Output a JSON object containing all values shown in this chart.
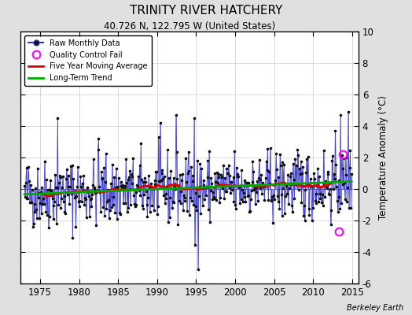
{
  "title": "TRINITY RIVER HATCHERY",
  "subtitle": "40.726 N, 122.795 W (United States)",
  "ylabel": "Temperature Anomaly (°C)",
  "watermark": "Berkeley Earth",
  "start_year": 1973,
  "end_year": 2014,
  "ylim": [
    -6,
    10
  ],
  "yticks": [
    -6,
    -4,
    -2,
    0,
    2,
    4,
    6,
    8,
    10
  ],
  "xlim": [
    1972.5,
    2015.8
  ],
  "xticks": [
    1975,
    1980,
    1985,
    1990,
    1995,
    2000,
    2005,
    2010,
    2015
  ],
  "bg_color": "#e0e0e0",
  "plot_bg_color": "#ffffff",
  "raw_line_color": "#3333cc",
  "raw_marker_color": "#111111",
  "moving_avg_color": "#dd0000",
  "trend_color": "#00aa00",
  "qc_fail_color": "#ff00ff",
  "seed": 42,
  "qc_fail_t": [
    2013.25,
    2013.83
  ],
  "qc_fail_v": [
    -2.7,
    2.2
  ]
}
